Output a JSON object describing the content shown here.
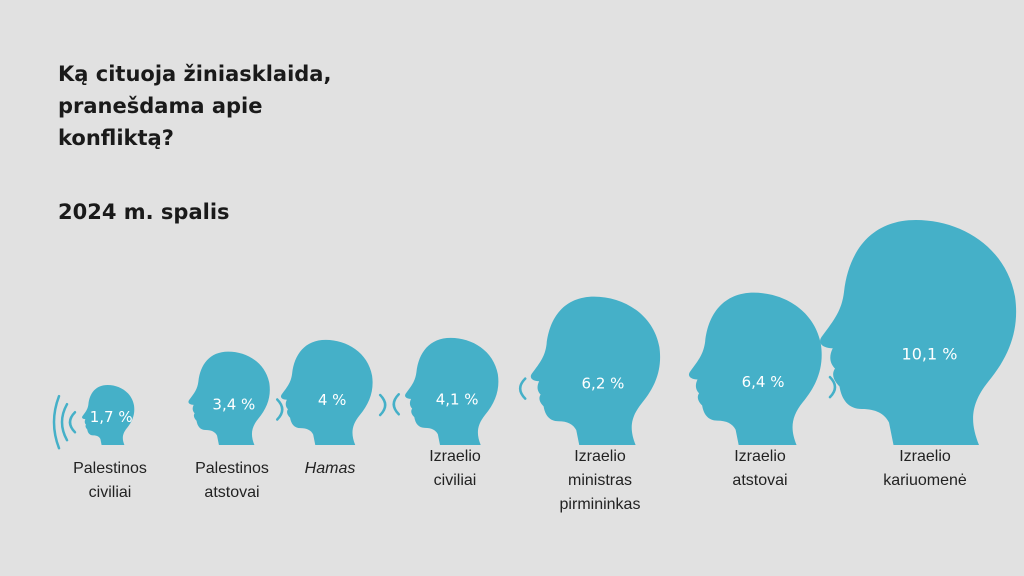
{
  "title": "Ką cituoja žiniasklaida,\npranešdama apie\nkonfliktą?",
  "subtitle": "2024 m. spalis",
  "colors": {
    "head": "#45b0c8",
    "value_text": "#ffffff",
    "background": "#e1e1e1"
  },
  "chart_data": {
    "type": "bar",
    "categories": [
      "Palestinos civiliai",
      "Palestinos atstovai",
      "Hamas",
      "Izraelio civiliai",
      "Izraelio ministras pirmininkas",
      "Izraelio atstovai",
      "Izraelio kariuomenė"
    ],
    "category_lines": [
      [
        "Palestinos",
        "civiliai"
      ],
      [
        "Palestinos",
        "atstovai"
      ],
      [
        "Hamas"
      ],
      [
        "Izraelio",
        "civiliai"
      ],
      [
        "Izraelio",
        "ministras",
        "pirmininkas"
      ],
      [
        "Izraelio",
        "atstovai"
      ],
      [
        "Izraelio",
        "kariuomenė"
      ]
    ],
    "values": [
      1.7,
      3.4,
      4,
      4.1,
      6.2,
      6.4,
      10.1
    ],
    "value_labels": [
      "1,7 %",
      "3,4 %",
      "4 %",
      "4,1 %",
      "6,2 %",
      "6,4 %",
      "10,1 %"
    ],
    "mark": "head-silhouette"
  }
}
